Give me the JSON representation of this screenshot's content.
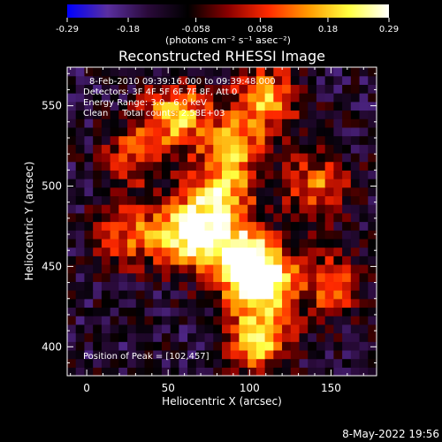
{
  "chart_data": {
    "type": "heatmap",
    "title": "Reconstructed RHESSI Image",
    "xlabel": "Heliocentric X (arcsec)",
    "ylabel": "Heliocentric Y (arcsec)",
    "xlim": [
      -12,
      178
    ],
    "ylim": [
      382,
      574
    ],
    "xticks": [
      "0",
      "50",
      "100",
      "150"
    ],
    "yticks": [
      "400",
      "450",
      "500",
      "550"
    ],
    "colorbar": {
      "range": [
        -0.29,
        0.29
      ],
      "ticks": [
        "-0.29",
        "-0.18",
        "-0.058",
        "0.058",
        "0.18",
        "0.29"
      ],
      "label": "(photons cm⁻² s⁻¹ asec⁻²)",
      "colors": [
        "#0000ff",
        "#5a2fa0",
        "#2a0a3a",
        "#000000",
        "#8a0000",
        "#ff2a00",
        "#ff9a00",
        "#ffff40",
        "#ffffff"
      ]
    },
    "annotations": [
      "8-Feb-2010 09:39:16.000 to 09:39:48.000",
      "Detectors: 3F 4F 5F 6F 7F 8F, Att 0",
      "Energy Range: 3.0 - 6.0 keV",
      "Clean     Total counts: 2.58E+03"
    ],
    "peak": "Position of Peak = [102,457]",
    "emission_centers": [
      {
        "x": 62,
        "y": 470,
        "value": 0.27
      },
      {
        "x": 95,
        "y": 455,
        "value": 0.29
      },
      {
        "x": 108,
        "y": 440,
        "value": 0.26
      },
      {
        "x": 82,
        "y": 492,
        "value": 0.2
      },
      {
        "x": 105,
        "y": 405,
        "value": 0.2
      },
      {
        "x": 55,
        "y": 545,
        "value": 0.18
      },
      {
        "x": 110,
        "y": 555,
        "value": 0.16
      },
      {
        "x": 90,
        "y": 525,
        "value": 0.14
      },
      {
        "x": 140,
        "y": 500,
        "value": 0.12
      },
      {
        "x": 150,
        "y": 440,
        "value": 0.1
      },
      {
        "x": 25,
        "y": 470,
        "value": 0.09
      },
      {
        "x": 30,
        "y": 520,
        "value": 0.08
      }
    ],
    "background_level": -0.12,
    "timestamp": "8-May-2022 19:56"
  }
}
